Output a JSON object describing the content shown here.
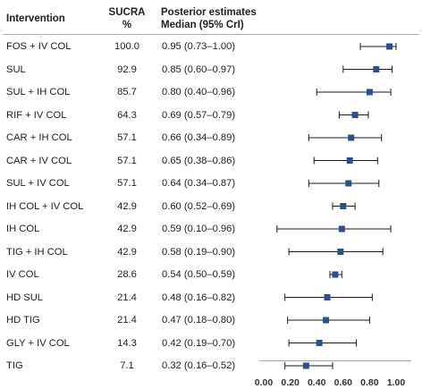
{
  "table": {
    "headers": {
      "intervention": "Intervention",
      "sucra_line1": "SUCRA",
      "sucra_line2": "%",
      "est_line1": "Posterior estimates",
      "est_line2": "Median (95% CrI)"
    }
  },
  "chart_data": {
    "type": "forest",
    "xlim": [
      0.0,
      1.0
    ],
    "xticks": [
      "0.00",
      "0.20",
      "0.40",
      "0.60",
      "0.80",
      "1.00"
    ],
    "colors": {
      "marker": "#2e4f8a",
      "whisker": "#1a1a1a",
      "rule": "#aaaaaa"
    },
    "rows": [
      {
        "intervention": "FOS + IV COL",
        "sucra": "100.0",
        "estimate_text": "0.95 (0.73–1.00)",
        "median": 0.95,
        "lower": 0.73,
        "upper": 1.0
      },
      {
        "intervention": "SUL",
        "sucra": "92.9",
        "estimate_text": "0.85 (0.60–0.97)",
        "median": 0.85,
        "lower": 0.6,
        "upper": 0.97
      },
      {
        "intervention": "SUL + IH COL",
        "sucra": "85.7",
        "estimate_text": "0.80 (0.40–0.96)",
        "median": 0.8,
        "lower": 0.4,
        "upper": 0.96
      },
      {
        "intervention": "RIF + IV COL",
        "sucra": "64.3",
        "estimate_text": "0.69 (0.57–0.79)",
        "median": 0.69,
        "lower": 0.57,
        "upper": 0.79
      },
      {
        "intervention": "CAR + IH COL",
        "sucra": "57.1",
        "estimate_text": "0.66 (0.34–0.89)",
        "median": 0.66,
        "lower": 0.34,
        "upper": 0.89
      },
      {
        "intervention": "CAR + IV COL",
        "sucra": "57.1",
        "estimate_text": "0.65 (0.38–0.86)",
        "median": 0.65,
        "lower": 0.38,
        "upper": 0.86
      },
      {
        "intervention": "SUL + IV COL",
        "sucra": "57.1",
        "estimate_text": "0.64 (0.34–0.87)",
        "median": 0.64,
        "lower": 0.34,
        "upper": 0.87
      },
      {
        "intervention": "IH COL + IV COL",
        "sucra": "42.9",
        "estimate_text": "0.60 (0.52–0.69)",
        "median": 0.6,
        "lower": 0.52,
        "upper": 0.69
      },
      {
        "intervention": "IH COL",
        "sucra": "42.9",
        "estimate_text": "0.59 (0.10–0.96)",
        "median": 0.59,
        "lower": 0.1,
        "upper": 0.96
      },
      {
        "intervention": "TIG + IH COL",
        "sucra": "42.9",
        "estimate_text": "0.58 (0.19–0.90)",
        "median": 0.58,
        "lower": 0.19,
        "upper": 0.9
      },
      {
        "intervention": "IV COL",
        "sucra": "28.6",
        "estimate_text": "0.54 (0.50–0.59)",
        "median": 0.54,
        "lower": 0.5,
        "upper": 0.59
      },
      {
        "intervention": "HD SUL",
        "sucra": "21.4",
        "estimate_text": "0.48 (0.16–0.82)",
        "median": 0.48,
        "lower": 0.16,
        "upper": 0.82
      },
      {
        "intervention": "HD TIG",
        "sucra": "21.4",
        "estimate_text": "0.47 (0.18–0.80)",
        "median": 0.47,
        "lower": 0.18,
        "upper": 0.8
      },
      {
        "intervention": "GLY + IV COL",
        "sucra": "14.3",
        "estimate_text": "0.42 (0.19–0.70)",
        "median": 0.42,
        "lower": 0.19,
        "upper": 0.7
      },
      {
        "intervention": "TIG",
        "sucra": "7.1",
        "estimate_text": "0.32 (0.16–0.52)",
        "median": 0.32,
        "lower": 0.16,
        "upper": 0.52
      }
    ]
  }
}
